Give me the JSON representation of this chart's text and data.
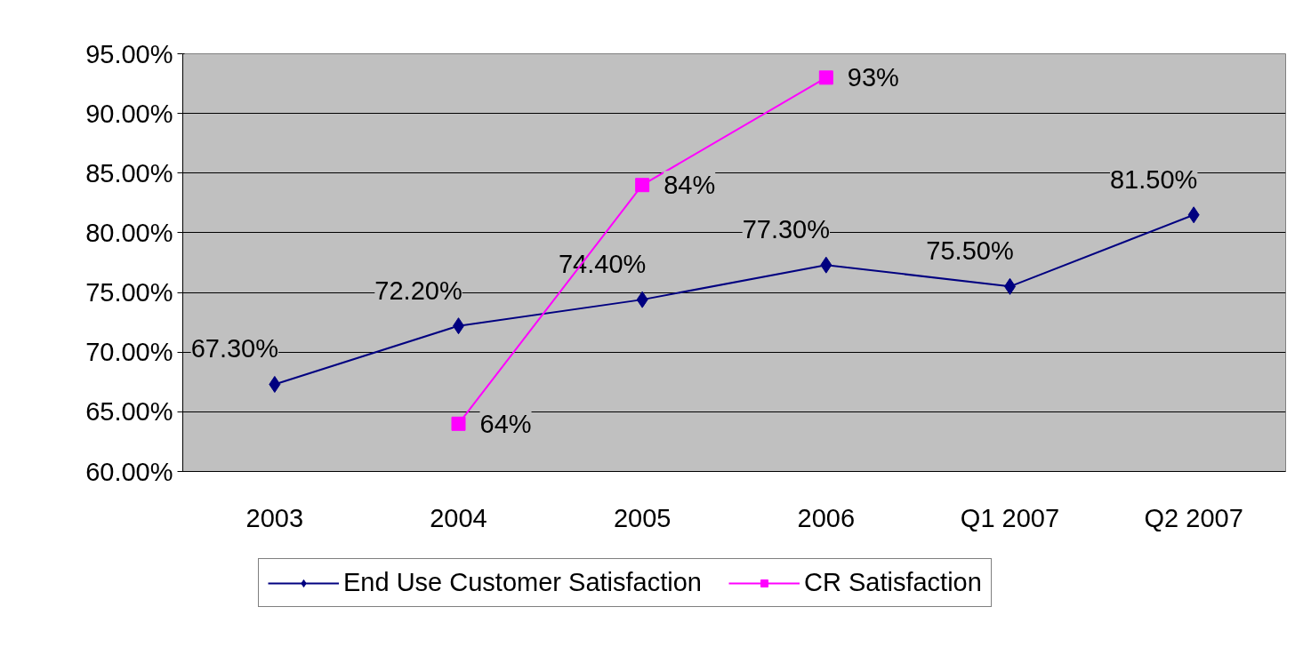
{
  "chart_data": {
    "type": "line",
    "categories": [
      "2003",
      "2004",
      "2005",
      "2006",
      "Q1 2007",
      "Q2 2007"
    ],
    "series": [
      {
        "name": "End Use Customer Satisfaction",
        "color": "#000080",
        "marker": "diamond",
        "values": [
          67.3,
          72.2,
          74.4,
          77.3,
          75.5,
          81.5
        ],
        "value_labels": [
          "67.30%",
          "72.20%",
          "74.40%",
          "77.30%",
          "75.50%",
          "81.50%"
        ]
      },
      {
        "name": "CR Satisfaction",
        "color": "#ff00ff",
        "marker": "square",
        "values": [
          null,
          64,
          84,
          93,
          null,
          null
        ],
        "value_labels": [
          null,
          "64%",
          "84%",
          "93%",
          null,
          null
        ]
      }
    ],
    "ylim": [
      60,
      95
    ],
    "yticks": [
      {
        "value": 60,
        "label": "60.00%"
      },
      {
        "value": 65,
        "label": "65.00%"
      },
      {
        "value": 70,
        "label": "70.00%"
      },
      {
        "value": 75,
        "label": "75.00%"
      },
      {
        "value": 80,
        "label": "80.00%"
      },
      {
        "value": 85,
        "label": "85.00%"
      },
      {
        "value": 90,
        "label": "90.00%"
      },
      {
        "value": 95,
        "label": "95.00%"
      }
    ],
    "grid": "y",
    "legend": "bottom",
    "line_style": "solid"
  }
}
